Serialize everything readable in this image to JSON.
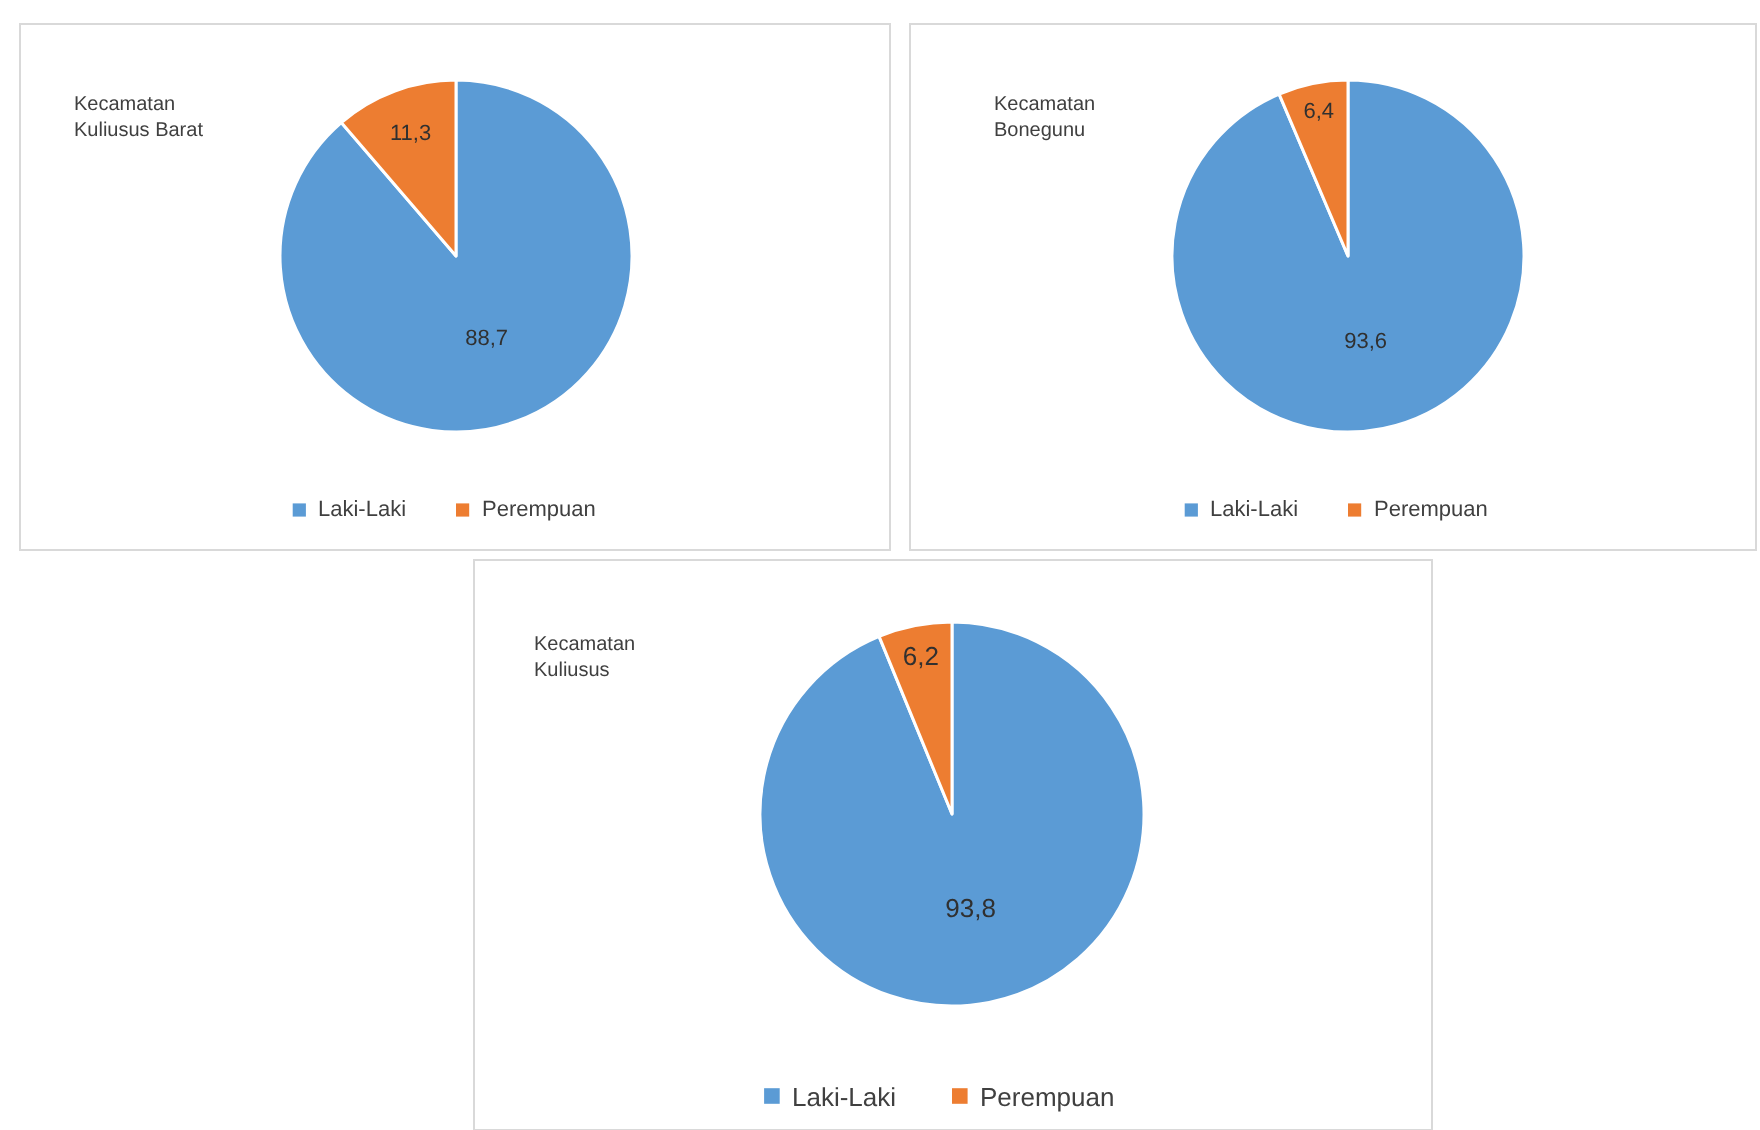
{
  "chart_data": [
    {
      "type": "pie",
      "title": "Kecamatan\nKuliusus Barat",
      "categories": [
        "Laki-Laki",
        "Perempuan"
      ],
      "values": [
        88.7,
        11.3
      ],
      "value_labels": [
        "88,7",
        "11,3"
      ],
      "colors": [
        "#5b9bd5",
        "#ed7d31"
      ],
      "legend": "bottom"
    },
    {
      "type": "pie",
      "title": "Kecamatan\nBonegunu",
      "categories": [
        "Laki-Laki",
        "Perempuan"
      ],
      "values": [
        93.6,
        6.4
      ],
      "value_labels": [
        "93,6",
        "6,4"
      ],
      "colors": [
        "#5b9bd5",
        "#ed7d31"
      ],
      "legend": "bottom"
    },
    {
      "type": "pie",
      "title": "Kecamatan\nKuliusus",
      "categories": [
        "Laki-Laki",
        "Perempuan"
      ],
      "values": [
        93.8,
        6.2
      ],
      "value_labels": [
        "93,8",
        "6,2"
      ],
      "colors": [
        "#5b9bd5",
        "#ed7d31"
      ],
      "legend": "bottom"
    }
  ]
}
